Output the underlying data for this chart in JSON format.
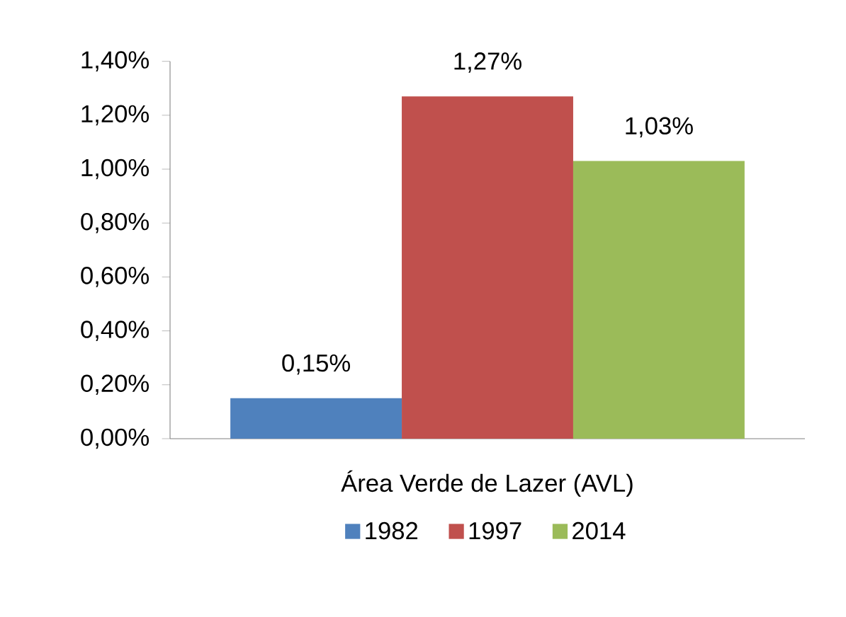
{
  "chart_data": {
    "type": "bar",
    "categories": [
      "Área Verde de Lazer (AVL)"
    ],
    "series": [
      {
        "name": "1982",
        "color": "#4f81bd",
        "values": [
          0.15
        ],
        "value_labels": [
          "0,15%"
        ]
      },
      {
        "name": "1997",
        "color": "#c0504d",
        "values": [
          1.27
        ],
        "value_labels": [
          "1,27%"
        ]
      },
      {
        "name": "2014",
        "color": "#9bbb59",
        "values": [
          1.03
        ],
        "value_labels": [
          "1,03%"
        ]
      }
    ],
    "ylim": [
      0,
      1.4
    ],
    "yticks": [
      {
        "value": 0,
        "label": "0,00%"
      },
      {
        "value": 0.2,
        "label": "0,20%"
      },
      {
        "value": 0.4,
        "label": "0,40%"
      },
      {
        "value": 0.6,
        "label": "0,60%"
      },
      {
        "value": 0.8,
        "label": "0,80%"
      },
      {
        "value": 1.0,
        "label": "1,00%"
      },
      {
        "value": 1.2,
        "label": "1,20%"
      },
      {
        "value": 1.4,
        "label": "1,40%"
      }
    ],
    "legend": "bottom",
    "grid": false
  }
}
